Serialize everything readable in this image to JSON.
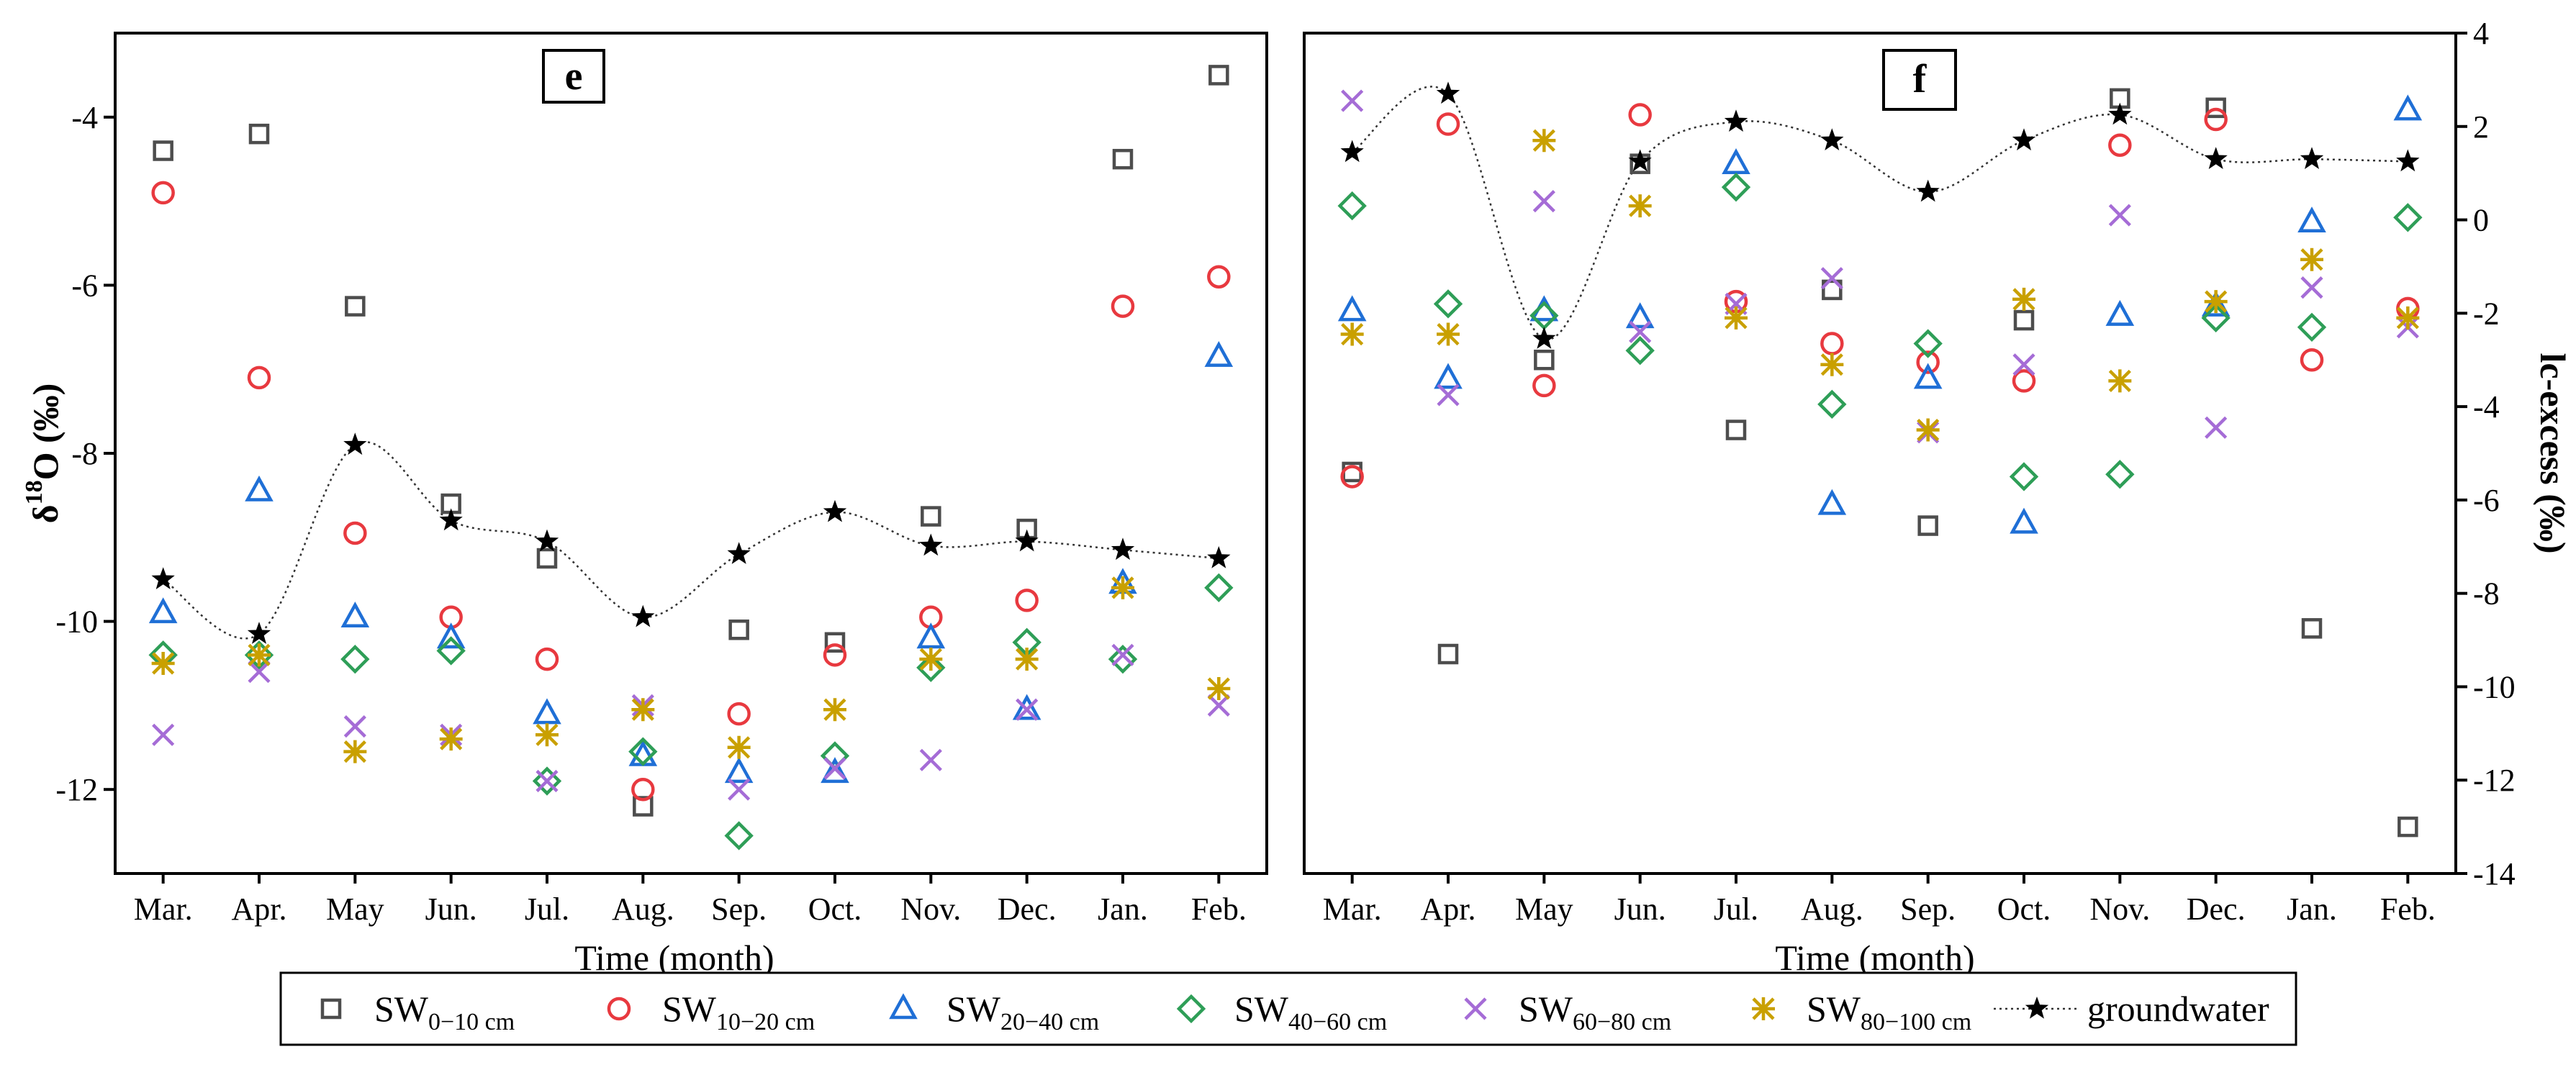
{
  "legend": {
    "items": [
      {
        "key": "sw0",
        "base": "SW",
        "sub": "0−10 cm"
      },
      {
        "key": "sw10",
        "base": "SW",
        "sub": "10−20 cm"
      },
      {
        "key": "sw20",
        "base": "SW",
        "sub": "20−40 cm"
      },
      {
        "key": "sw40",
        "base": "SW",
        "sub": "40−60 cm"
      },
      {
        "key": "sw60",
        "base": "SW",
        "sub": "60−80 cm"
      },
      {
        "key": "sw80",
        "base": "SW",
        "sub": "80−100 cm"
      },
      {
        "key": "gw",
        "base": "groundwater",
        "sub": ""
      }
    ]
  },
  "styles": {
    "sw0": {
      "marker": "square",
      "color": "#4d4d4d"
    },
    "sw10": {
      "marker": "circle",
      "color": "#e8393f"
    },
    "sw20": {
      "marker": "triangle",
      "color": "#1f6fd6"
    },
    "sw40": {
      "marker": "diamond",
      "color": "#2e9e57"
    },
    "sw60": {
      "marker": "x",
      "color": "#a56cd6"
    },
    "sw80": {
      "marker": "asterisk",
      "color": "#c9a000"
    },
    "gw": {
      "marker": "star",
      "color": "#000000"
    }
  },
  "chart_data": [
    {
      "type": "scatter",
      "panel_label": "e",
      "title": "",
      "xlabel": "Time (month)",
      "ylabel_main": "δ",
      "ylabel_sup": "18",
      "ylabel_rest": "O (‰)",
      "ylim": [
        -13,
        -3
      ],
      "yticks": [
        -12,
        -10,
        -8,
        -6,
        -4
      ],
      "y_axis_side": "left",
      "categories": [
        "Mar.",
        "Apr.",
        "May",
        "Jun.",
        "Jul.",
        "Aug.",
        "Sep.",
        "Oct.",
        "Nov.",
        "Dec.",
        "Jan.",
        "Feb."
      ],
      "series": [
        {
          "name": "SW0-10 cm",
          "key": "sw0",
          "values": [
            -4.4,
            -4.2,
            -6.25,
            -8.6,
            -9.25,
            -12.2,
            -10.1,
            -10.25,
            -8.75,
            -8.9,
            -4.5,
            -3.5
          ]
        },
        {
          "name": "SW10-20 cm",
          "key": "sw10",
          "values": [
            -4.9,
            -7.1,
            -8.95,
            -9.95,
            -10.45,
            -12.0,
            -11.1,
            -10.4,
            -9.95,
            -9.75,
            -6.25,
            -5.9
          ]
        },
        {
          "name": "SW20-40 cm",
          "key": "sw20",
          "values": [
            -9.9,
            -8.45,
            -9.95,
            -10.2,
            -11.1,
            -11.6,
            -11.8,
            -11.8,
            -10.2,
            -11.05,
            -9.55,
            -6.85
          ]
        },
        {
          "name": "SW40-60 cm",
          "key": "sw40",
          "values": [
            -10.4,
            -10.4,
            -10.45,
            -10.35,
            -11.9,
            -11.55,
            -12.55,
            -11.6,
            -10.55,
            -10.25,
            -10.45,
            -9.6
          ]
        },
        {
          "name": "SW60-80 cm",
          "key": "sw60",
          "values": [
            -11.35,
            -10.6,
            -11.25,
            -11.35,
            -11.9,
            -11.0,
            -12.0,
            -11.75,
            -11.65,
            -11.05,
            -10.4,
            -11.0
          ]
        },
        {
          "name": "SW80-100 cm",
          "key": "sw80",
          "values": [
            -10.5,
            -10.4,
            -11.55,
            -11.4,
            -11.35,
            -11.05,
            -11.5,
            -11.05,
            -10.45,
            -10.45,
            -9.6,
            -10.8
          ]
        },
        {
          "name": "groundwater",
          "key": "gw",
          "line": true,
          "values": [
            -9.5,
            -10.15,
            -7.9,
            -8.8,
            -9.05,
            -9.95,
            -9.2,
            -8.7,
            -9.1,
            -9.05,
            -9.15,
            -9.25
          ]
        }
      ]
    },
    {
      "type": "scatter",
      "panel_label": "f",
      "title": "",
      "xlabel": "Time (month)",
      "ylabel_main": "lc-excess (‰)",
      "ylim": [
        -14,
        4
      ],
      "yticks": [
        -14,
        -12,
        -10,
        -8,
        -6,
        -4,
        -2,
        0,
        2,
        4
      ],
      "y_axis_side": "right",
      "categories": [
        "Mar.",
        "Apr.",
        "May",
        "Jun.",
        "Jul.",
        "Aug.",
        "Sep.",
        "Oct.",
        "Nov.",
        "Dec.",
        "Jan.",
        "Feb."
      ],
      "series": [
        {
          "name": "SW0-10 cm",
          "key": "sw0",
          "values": [
            -5.4,
            -9.3,
            -3.0,
            1.2,
            -4.5,
            -1.5,
            -6.55,
            -2.15,
            2.6,
            2.4,
            -8.75,
            -13.0
          ]
        },
        {
          "name": "SW10-20 cm",
          "key": "sw10",
          "values": [
            -5.5,
            2.05,
            -3.55,
            2.25,
            -1.75,
            -2.65,
            -3.05,
            -3.45,
            1.6,
            2.15,
            -3.0,
            -1.9
          ]
        },
        {
          "name": "SW20-40 cm",
          "key": "sw20",
          "values": [
            -1.95,
            -3.4,
            -1.95,
            -2.1,
            1.2,
            -6.1,
            -3.4,
            -6.5,
            -2.05,
            -1.85,
            -0.05,
            2.35
          ]
        },
        {
          "name": "SW40-60 cm",
          "key": "sw40",
          "values": [
            0.3,
            -1.8,
            -2.05,
            -2.8,
            0.7,
            -3.95,
            -2.65,
            -5.5,
            -5.45,
            -2.1,
            -2.3,
            0.05
          ]
        },
        {
          "name": "SW60-80 cm",
          "key": "sw60",
          "values": [
            2.55,
            -3.75,
            0.4,
            -2.4,
            -1.8,
            -1.25,
            -4.55,
            -3.1,
            0.1,
            -4.45,
            -1.45,
            -2.3
          ]
        },
        {
          "name": "SW80-100 cm",
          "key": "sw80",
          "values": [
            -2.45,
            -2.45,
            1.7,
            0.3,
            -2.1,
            -3.1,
            -4.5,
            -1.7,
            -3.45,
            -1.75,
            -0.85,
            -2.1
          ]
        },
        {
          "name": "groundwater",
          "key": "gw",
          "line": true,
          "values": [
            1.45,
            2.7,
            -2.55,
            1.25,
            2.1,
            1.7,
            0.6,
            1.7,
            2.25,
            1.3,
            1.3,
            1.25
          ]
        }
      ]
    }
  ]
}
